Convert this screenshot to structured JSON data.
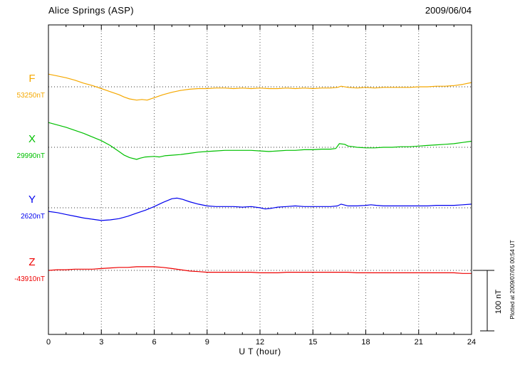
{
  "header": {
    "station": "Alice Springs (ASP)",
    "date": "2009/06/04"
  },
  "axis": {
    "x_label": "U T (hour)",
    "ticks": [
      0,
      3,
      6,
      9,
      12,
      15,
      18,
      21,
      24
    ]
  },
  "scale_bar": {
    "label": "100 nT",
    "nT": 100
  },
  "footer_note": "Plotted at 2009/07/05 00:54 UT",
  "chart_data": {
    "type": "line",
    "title": "Alice Springs (ASP) magnetogram 2009/06/04",
    "xlabel": "U T (hour)",
    "x_range": [
      0,
      24
    ],
    "grid": "dotted vertical every 3 h; dotted horizontal baseline per component",
    "series": [
      {
        "name": "F",
        "color": "#F5A800",
        "baseline_value_nT": 53250,
        "baseline_label": "53250nT",
        "points": [
          [
            0,
            21
          ],
          [
            0.5,
            18
          ],
          [
            1,
            15
          ],
          [
            1.5,
            11
          ],
          [
            2,
            6
          ],
          [
            2.5,
            2
          ],
          [
            3,
            -3
          ],
          [
            3.5,
            -8
          ],
          [
            4,
            -13
          ],
          [
            4.3,
            -17
          ],
          [
            4.6,
            -20
          ],
          [
            5,
            -22
          ],
          [
            5.3,
            -21
          ],
          [
            5.6,
            -22
          ],
          [
            6,
            -18
          ],
          [
            6.5,
            -13
          ],
          [
            7,
            -9
          ],
          [
            7.5,
            -6
          ],
          [
            8,
            -4
          ],
          [
            8.5,
            -3
          ],
          [
            9,
            -3
          ],
          [
            9.5,
            -2
          ],
          [
            10,
            -2
          ],
          [
            10.5,
            -3
          ],
          [
            11,
            -2
          ],
          [
            11.5,
            -3
          ],
          [
            12,
            -2
          ],
          [
            12.5,
            -3
          ],
          [
            13,
            -3
          ],
          [
            13.5,
            -2
          ],
          [
            14,
            -3
          ],
          [
            14.5,
            -2
          ],
          [
            15,
            -3
          ],
          [
            15.5,
            -2
          ],
          [
            16,
            -2
          ],
          [
            16.4,
            -1
          ],
          [
            16.6,
            1
          ],
          [
            17,
            -1
          ],
          [
            17.5,
            -2
          ],
          [
            18,
            -1
          ],
          [
            18.5,
            -2
          ],
          [
            19,
            -1
          ],
          [
            19.5,
            -1
          ],
          [
            20,
            -1
          ],
          [
            20.5,
            -1
          ],
          [
            21,
            0
          ],
          [
            21.5,
            0
          ],
          [
            22,
            1
          ],
          [
            22.5,
            1
          ],
          [
            23,
            2
          ],
          [
            23.5,
            4
          ],
          [
            24,
            7
          ]
        ]
      },
      {
        "name": "X",
        "color": "#00C000",
        "baseline_value_nT": 29990,
        "baseline_label": "29990nT",
        "points": [
          [
            0,
            41
          ],
          [
            0.5,
            37
          ],
          [
            1,
            33
          ],
          [
            1.5,
            28
          ],
          [
            2,
            23
          ],
          [
            2.5,
            17
          ],
          [
            3,
            11
          ],
          [
            3.5,
            3
          ],
          [
            4,
            -7
          ],
          [
            4.3,
            -13
          ],
          [
            4.6,
            -17
          ],
          [
            5,
            -20
          ],
          [
            5.2,
            -18
          ],
          [
            5.5,
            -16
          ],
          [
            6,
            -15
          ],
          [
            6.3,
            -16
          ],
          [
            6.6,
            -14
          ],
          [
            7,
            -13
          ],
          [
            7.5,
            -12
          ],
          [
            8,
            -10
          ],
          [
            8.5,
            -8
          ],
          [
            9,
            -7
          ],
          [
            9.5,
            -6
          ],
          [
            10,
            -5
          ],
          [
            10.5,
            -5
          ],
          [
            11,
            -5
          ],
          [
            11.5,
            -5
          ],
          [
            12,
            -6
          ],
          [
            12.5,
            -7
          ],
          [
            13,
            -6
          ],
          [
            13.5,
            -5
          ],
          [
            14,
            -5
          ],
          [
            14.5,
            -4
          ],
          [
            15,
            -4
          ],
          [
            15.5,
            -3
          ],
          [
            16,
            -3
          ],
          [
            16.3,
            -2
          ],
          [
            16.5,
            6
          ],
          [
            16.8,
            5
          ],
          [
            17,
            2
          ],
          [
            17.3,
            1
          ],
          [
            17.5,
            0
          ],
          [
            18,
            -1
          ],
          [
            18.5,
            -1
          ],
          [
            19,
            0
          ],
          [
            19.5,
            0
          ],
          [
            20,
            1
          ],
          [
            20.5,
            1
          ],
          [
            21,
            2
          ],
          [
            21.5,
            3
          ],
          [
            22,
            4
          ],
          [
            22.5,
            5
          ],
          [
            23,
            6
          ],
          [
            23.5,
            8
          ],
          [
            24,
            10
          ]
        ]
      },
      {
        "name": "Y",
        "color": "#0000EE",
        "baseline_value_nT": 2620,
        "baseline_label": "2620nT",
        "points": [
          [
            0,
            -6
          ],
          [
            0.5,
            -8
          ],
          [
            1,
            -11
          ],
          [
            1.5,
            -14
          ],
          [
            2,
            -17
          ],
          [
            2.5,
            -19
          ],
          [
            3,
            -21
          ],
          [
            3.5,
            -20
          ],
          [
            4,
            -18
          ],
          [
            4.5,
            -14
          ],
          [
            5,
            -9
          ],
          [
            5.5,
            -4
          ],
          [
            6,
            2
          ],
          [
            6.5,
            9
          ],
          [
            7,
            15
          ],
          [
            7.3,
            16
          ],
          [
            7.6,
            14
          ],
          [
            8,
            10
          ],
          [
            8.5,
            6
          ],
          [
            9,
            3
          ],
          [
            9.5,
            2
          ],
          [
            10,
            2
          ],
          [
            10.5,
            2
          ],
          [
            11,
            1
          ],
          [
            11.5,
            2
          ],
          [
            12,
            0
          ],
          [
            12.3,
            -2
          ],
          [
            12.6,
            -1
          ],
          [
            13,
            1
          ],
          [
            13.5,
            2
          ],
          [
            14,
            3
          ],
          [
            14.5,
            2
          ],
          [
            15,
            2
          ],
          [
            15.5,
            2
          ],
          [
            16,
            2
          ],
          [
            16.4,
            3
          ],
          [
            16.6,
            6
          ],
          [
            17,
            3
          ],
          [
            17.5,
            3
          ],
          [
            18,
            4
          ],
          [
            18.3,
            5
          ],
          [
            18.6,
            4
          ],
          [
            19,
            3
          ],
          [
            19.5,
            3
          ],
          [
            20,
            3
          ],
          [
            20.5,
            3
          ],
          [
            21,
            3
          ],
          [
            21.5,
            3
          ],
          [
            22,
            4
          ],
          [
            22.5,
            4
          ],
          [
            23,
            4
          ],
          [
            23.5,
            5
          ],
          [
            24,
            6
          ]
        ]
      },
      {
        "name": "Z",
        "color": "#EE0000",
        "baseline_value_nT": -43910,
        "baseline_label": "-43910nT",
        "points": [
          [
            0,
            0
          ],
          [
            0.5,
            1
          ],
          [
            1,
            1
          ],
          [
            1.5,
            2
          ],
          [
            2,
            2
          ],
          [
            2.5,
            2
          ],
          [
            3,
            3
          ],
          [
            3.5,
            4
          ],
          [
            4,
            5
          ],
          [
            4.5,
            5
          ],
          [
            5,
            6
          ],
          [
            5.5,
            6
          ],
          [
            6,
            6
          ],
          [
            6.5,
            5
          ],
          [
            7,
            3
          ],
          [
            7.5,
            1
          ],
          [
            8,
            -1
          ],
          [
            8.5,
            -2
          ],
          [
            9,
            -3
          ],
          [
            9.5,
            -3
          ],
          [
            10,
            -3
          ],
          [
            10.5,
            -3
          ],
          [
            11,
            -3
          ],
          [
            11.5,
            -3
          ],
          [
            12,
            -4
          ],
          [
            12.5,
            -4
          ],
          [
            13,
            -4
          ],
          [
            13.5,
            -3
          ],
          [
            14,
            -3
          ],
          [
            14.5,
            -3
          ],
          [
            15,
            -3
          ],
          [
            15.5,
            -3
          ],
          [
            16,
            -3
          ],
          [
            16.5,
            -3
          ],
          [
            17,
            -3
          ],
          [
            17.5,
            -4
          ],
          [
            18,
            -4
          ],
          [
            18.5,
            -4
          ],
          [
            19,
            -4
          ],
          [
            19.5,
            -4
          ],
          [
            20,
            -4
          ],
          [
            20.5,
            -4
          ],
          [
            21,
            -4
          ],
          [
            21.5,
            -4
          ],
          [
            22,
            -4
          ],
          [
            22.5,
            -4
          ],
          [
            23,
            -4
          ],
          [
            23.5,
            -5
          ],
          [
            24,
            -5
          ]
        ]
      }
    ]
  }
}
